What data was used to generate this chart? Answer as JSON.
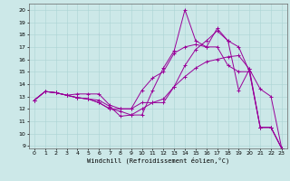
{
  "xlabel": "Windchill (Refroidissement éolien,°C)",
  "background_color": "#cce8e8",
  "grid_color": "#aad4d4",
  "line_color": "#990099",
  "xlim": [
    -0.5,
    23.5
  ],
  "ylim": [
    8.8,
    20.5
  ],
  "yticks": [
    9,
    10,
    11,
    12,
    13,
    14,
    15,
    16,
    17,
    18,
    19,
    20
  ],
  "xticks": [
    0,
    1,
    2,
    3,
    4,
    5,
    6,
    7,
    8,
    9,
    10,
    11,
    12,
    13,
    14,
    15,
    16,
    17,
    18,
    19,
    20,
    21,
    22,
    23
  ],
  "lines": [
    [
      12.7,
      13.4,
      13.3,
      13.1,
      12.9,
      12.8,
      12.7,
      12.2,
      11.4,
      11.5,
      12.0,
      12.5,
      12.5,
      13.8,
      15.5,
      16.8,
      17.5,
      18.3,
      17.5,
      17.0,
      15.0,
      10.5,
      10.5,
      8.8
    ],
    [
      12.7,
      13.4,
      13.3,
      13.1,
      13.2,
      13.2,
      13.2,
      12.3,
      12.0,
      12.0,
      12.5,
      12.5,
      12.8,
      13.8,
      14.6,
      15.3,
      15.8,
      16.0,
      16.2,
      16.3,
      15.2,
      13.6,
      13.0,
      8.8
    ],
    [
      12.7,
      13.4,
      13.3,
      13.1,
      12.9,
      12.8,
      12.5,
      12.0,
      11.8,
      11.5,
      11.5,
      13.5,
      15.3,
      16.7,
      20.0,
      17.5,
      17.0,
      17.0,
      15.5,
      15.0,
      15.0,
      10.5,
      10.5,
      8.8
    ],
    [
      12.7,
      13.4,
      13.3,
      13.1,
      12.9,
      12.8,
      12.5,
      12.0,
      12.0,
      12.0,
      13.5,
      14.5,
      15.0,
      16.5,
      17.0,
      17.2,
      17.0,
      18.5,
      17.5,
      13.5,
      15.2,
      10.5,
      10.5,
      8.8
    ]
  ]
}
